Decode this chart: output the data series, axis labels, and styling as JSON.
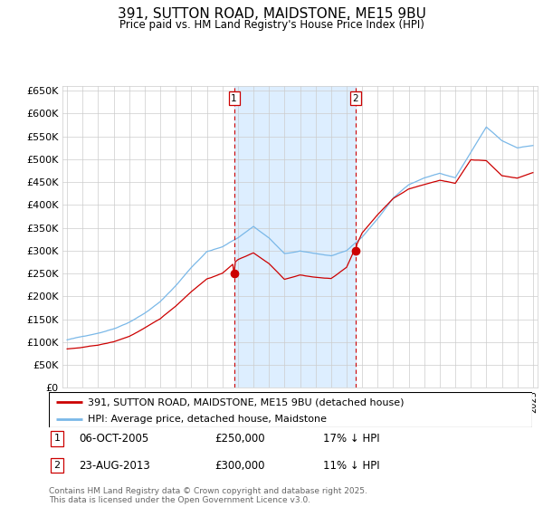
{
  "title": "391, SUTTON ROAD, MAIDSTONE, ME15 9BU",
  "subtitle": "Price paid vs. HM Land Registry's House Price Index (HPI)",
  "footer": "Contains HM Land Registry data © Crown copyright and database right 2025.\nThis data is licensed under the Open Government Licence v3.0.",
  "legend_line1": "391, SUTTON ROAD, MAIDSTONE, ME15 9BU (detached house)",
  "legend_line2": "HPI: Average price, detached house, Maidstone",
  "sale1_label": "1",
  "sale1_date": "06-OCT-2005",
  "sale1_price": "£250,000",
  "sale1_note": "17% ↓ HPI",
  "sale2_label": "2",
  "sale2_date": "23-AUG-2013",
  "sale2_price": "£300,000",
  "sale2_note": "11% ↓ HPI",
  "hpi_color": "#7ab8e8",
  "price_color": "#cc0000",
  "shade_color": "#ddeeff",
  "background_color": "#ffffff",
  "grid_color": "#cccccc",
  "ylim": [
    0,
    660000
  ],
  "ytick_step": 50000,
  "sale1_x": 2005.75,
  "sale2_x": 2013.58,
  "vline_color": "#cc0000",
  "xlim_left": 1994.7,
  "xlim_right": 2025.3
}
